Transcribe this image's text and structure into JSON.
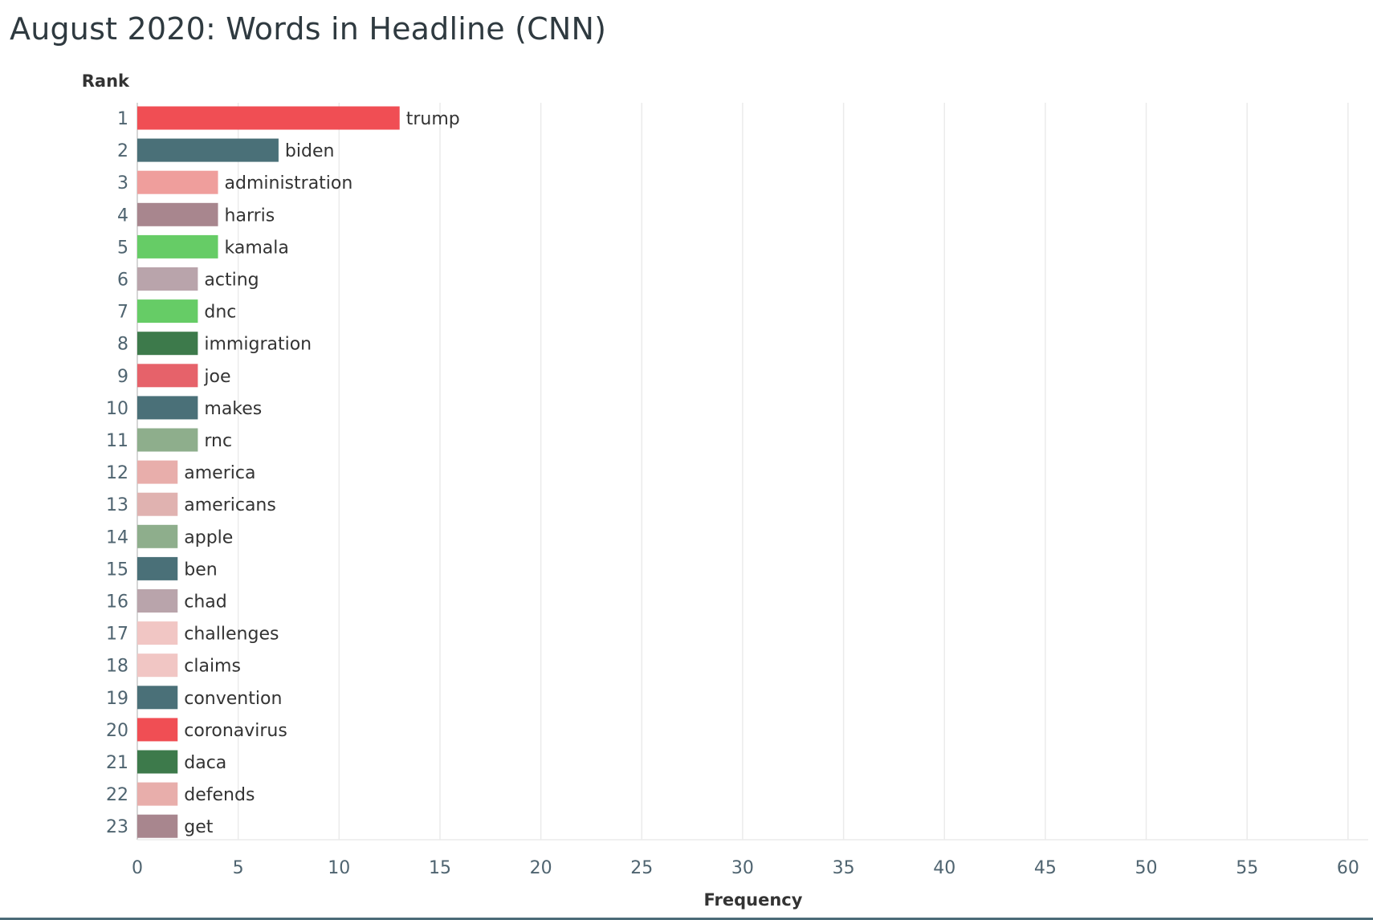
{
  "chart_data": {
    "type": "bar",
    "orientation": "horizontal",
    "title": "August 2020: Words in Headline (CNN)",
    "ylabel": "Rank",
    "xlabel": "Frequency",
    "xlim": [
      0,
      61
    ],
    "xticks": [
      0,
      5,
      10,
      15,
      20,
      25,
      30,
      35,
      40,
      45,
      50,
      55,
      60
    ],
    "grid": "vertical",
    "legend": "none",
    "bars": [
      {
        "rank": "1",
        "word": "trump",
        "value": 13,
        "color": "#f04e54"
      },
      {
        "rank": "2",
        "word": "biden",
        "value": 7,
        "color": "#4a7078"
      },
      {
        "rank": "3",
        "word": "administration",
        "value": 4,
        "color": "#ef9e9c"
      },
      {
        "rank": "4",
        "word": "harris",
        "value": 4,
        "color": "#a8868e"
      },
      {
        "rank": "5",
        "word": "kamala",
        "value": 4,
        "color": "#66cc66"
      },
      {
        "rank": "6",
        "word": "acting",
        "value": 3,
        "color": "#b9a4ab"
      },
      {
        "rank": "7",
        "word": "dnc",
        "value": 3,
        "color": "#66cc66"
      },
      {
        "rank": "8",
        "word": "immigration",
        "value": 3,
        "color": "#3d7a4b"
      },
      {
        "rank": "9",
        "word": "joe",
        "value": 3,
        "color": "#e6626a"
      },
      {
        "rank": "10",
        "word": "makes",
        "value": 3,
        "color": "#4a7078"
      },
      {
        "rank": "11",
        "word": "rnc",
        "value": 3,
        "color": "#8eae8c"
      },
      {
        "rank": "12",
        "word": "america",
        "value": 2,
        "color": "#e8aeab"
      },
      {
        "rank": "13",
        "word": "americans",
        "value": 2,
        "color": "#e0b2b0"
      },
      {
        "rank": "14",
        "word": "apple",
        "value": 2,
        "color": "#8eae8c"
      },
      {
        "rank": "15",
        "word": "ben",
        "value": 2,
        "color": "#4a7078"
      },
      {
        "rank": "16",
        "word": "chad",
        "value": 2,
        "color": "#b9a4ab"
      },
      {
        "rank": "17",
        "word": "challenges",
        "value": 2,
        "color": "#f1c6c4"
      },
      {
        "rank": "18",
        "word": "claims",
        "value": 2,
        "color": "#f1c6c4"
      },
      {
        "rank": "19",
        "word": "convention",
        "value": 2,
        "color": "#4a7078"
      },
      {
        "rank": "20",
        "word": "coronavirus",
        "value": 2,
        "color": "#f04e54"
      },
      {
        "rank": "21",
        "word": "daca",
        "value": 2,
        "color": "#3d7a4b"
      },
      {
        "rank": "22",
        "word": "defends",
        "value": 2,
        "color": "#e8aeab"
      },
      {
        "rank": "23",
        "word": "get",
        "value": 2,
        "color": "#a8868e"
      }
    ]
  }
}
